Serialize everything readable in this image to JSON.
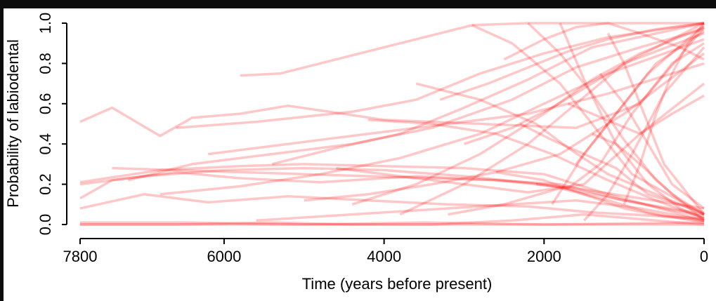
{
  "chart_data": {
    "type": "line",
    "title": "",
    "xlabel": "Time (years before present)",
    "ylabel": "Probability of labiodental",
    "xlim": [
      7800,
      0
    ],
    "ylim": [
      0,
      1
    ],
    "x_ticks": [
      "7800",
      "6000",
      "4000",
      "2000",
      "0"
    ],
    "y_ticks": [
      "0.0",
      "0.2",
      "0.4",
      "0.6",
      "0.8",
      "1.0"
    ],
    "line_color": "#ff0000",
    "grid": false,
    "legend": "none",
    "series": [
      {
        "x": [
          7800,
          7400,
          6800,
          6400,
          5800,
          5200,
          4000,
          2800,
          1600,
          800,
          0
        ],
        "y": [
          0.51,
          0.58,
          0.44,
          0.53,
          0.55,
          0.59,
          0.52,
          0.5,
          0.48,
          0.6,
          0.98
        ]
      },
      {
        "x": [
          7800,
          6800,
          5800,
          5000,
          4000,
          3000,
          2000,
          1200,
          0
        ],
        "y": [
          0.21,
          0.27,
          0.29,
          0.3,
          0.29,
          0.28,
          0.25,
          0.15,
          0.02
        ]
      },
      {
        "x": [
          7800,
          7000,
          6000,
          5000,
          4000,
          3000,
          2000,
          1000,
          0
        ],
        "y": [
          0.2,
          0.24,
          0.27,
          0.28,
          0.27,
          0.24,
          0.2,
          0.12,
          0.05
        ]
      },
      {
        "x": [
          7800,
          7400,
          6600,
          5800,
          4800,
          3600,
          2600,
          1600,
          0
        ],
        "y": [
          0.13,
          0.22,
          0.26,
          0.23,
          0.21,
          0.24,
          0.22,
          0.18,
          0.08
        ]
      },
      {
        "x": [
          7800,
          7000,
          6200,
          5200,
          4200,
          3200,
          2200,
          1400,
          0
        ],
        "y": [
          0.08,
          0.15,
          0.11,
          0.14,
          0.12,
          0.1,
          0.09,
          0.06,
          0.03
        ]
      },
      {
        "x": [
          7800,
          6000,
          4000,
          2000,
          1000,
          0
        ],
        "y": [
          0.0,
          0.0,
          0.0,
          0.0,
          0.0,
          0.0
        ]
      },
      {
        "x": [
          7800,
          6500,
          5000,
          3500,
          2000,
          0
        ],
        "y": [
          0.01,
          0.01,
          0.0,
          0.01,
          0.0,
          0.01
        ]
      },
      {
        "x": [
          7800,
          6600,
          5400,
          4400,
          3400,
          2400,
          1500,
          0
        ],
        "y": [
          0.0,
          0.0,
          0.01,
          0.0,
          0.0,
          0.02,
          0.05,
          0.0
        ]
      },
      {
        "x": [
          5800,
          5300,
          4200,
          2900,
          2200,
          1500,
          0
        ],
        "y": [
          0.74,
          0.75,
          0.86,
          0.99,
          1.0,
          1.0,
          1.0
        ]
      },
      {
        "x": [
          6600,
          5600,
          4400,
          3600,
          2800,
          2000,
          1200,
          0
        ],
        "y": [
          0.48,
          0.51,
          0.56,
          0.62,
          0.75,
          0.85,
          0.93,
          1.0
        ]
      },
      {
        "x": [
          7200,
          6400,
          5400,
          4400,
          3400,
          2400,
          1600,
          800,
          0
        ],
        "y": [
          0.22,
          0.3,
          0.35,
          0.4,
          0.48,
          0.62,
          0.78,
          0.88,
          0.97
        ]
      },
      {
        "x": [
          6800,
          5800,
          4800,
          3800,
          2800,
          2000,
          1200,
          0
        ],
        "y": [
          0.15,
          0.19,
          0.25,
          0.33,
          0.45,
          0.6,
          0.75,
          0.92
        ]
      },
      {
        "x": [
          5400,
          4600,
          3800,
          3000,
          2200,
          1400,
          0
        ],
        "y": [
          0.3,
          0.38,
          0.45,
          0.58,
          0.72,
          0.88,
          1.0
        ]
      },
      {
        "x": [
          4400,
          3600,
          2800,
          2000,
          1400,
          800,
          0
        ],
        "y": [
          0.1,
          0.2,
          0.35,
          0.55,
          0.72,
          0.85,
          0.98
        ]
      },
      {
        "x": [
          3800,
          3000,
          2200,
          1600,
          1000,
          0
        ],
        "y": [
          0.05,
          0.2,
          0.4,
          0.6,
          0.8,
          0.95
        ]
      },
      {
        "x": [
          3600,
          2800,
          2100,
          1700,
          1200,
          0
        ],
        "y": [
          0.7,
          0.62,
          0.5,
          0.38,
          0.25,
          0.05
        ]
      },
      {
        "x": [
          4200,
          3400,
          2600,
          1900,
          1200,
          600,
          0
        ],
        "y": [
          0.52,
          0.5,
          0.45,
          0.35,
          0.22,
          0.12,
          0.03
        ]
      },
      {
        "x": [
          2900,
          2400,
          1800,
          1300,
          900,
          0
        ],
        "y": [
          0.99,
          0.9,
          0.7,
          0.45,
          0.25,
          0.05
        ]
      },
      {
        "x": [
          2200,
          1800,
          1400,
          1000,
          600,
          0
        ],
        "y": [
          1.0,
          0.85,
          0.65,
          0.42,
          0.22,
          0.02
        ]
      },
      {
        "x": [
          1800,
          1500,
          1100,
          700,
          300,
          0
        ],
        "y": [
          1.0,
          0.72,
          0.4,
          0.2,
          0.08,
          0.03
        ]
      },
      {
        "x": [
          1600,
          1300,
          1000,
          600,
          0
        ],
        "y": [
          0.3,
          0.45,
          0.6,
          0.8,
          0.96
        ]
      },
      {
        "x": [
          1900,
          1500,
          1100,
          700,
          0
        ],
        "y": [
          0.1,
          0.35,
          0.55,
          0.75,
          0.99
        ]
      },
      {
        "x": [
          2100,
          1700,
          1300,
          900,
          400,
          0
        ],
        "y": [
          0.2,
          0.18,
          0.3,
          0.55,
          0.8,
          0.9
        ]
      },
      {
        "x": [
          1400,
          1100,
          800,
          400,
          0
        ],
        "y": [
          0.45,
          0.4,
          0.3,
          0.15,
          0.05
        ]
      },
      {
        "x": [
          1700,
          1400,
          1100,
          800,
          400,
          0
        ],
        "y": [
          0.6,
          0.55,
          0.5,
          0.45,
          0.55,
          0.64
        ]
      },
      {
        "x": [
          2600,
          2000,
          1500,
          1000,
          500,
          0
        ],
        "y": [
          0.26,
          0.22,
          0.15,
          0.08,
          0.04,
          0.02
        ]
      },
      {
        "x": [
          3200,
          2500,
          1800,
          1200,
          700,
          0
        ],
        "y": [
          0.05,
          0.1,
          0.18,
          0.12,
          0.06,
          0.01
        ]
      },
      {
        "x": [
          1500,
          1200,
          900,
          500,
          0
        ],
        "y": [
          0.02,
          0.15,
          0.35,
          0.65,
          0.88
        ]
      },
      {
        "x": [
          1200,
          1000,
          800,
          500,
          0
        ],
        "y": [
          0.95,
          0.8,
          0.6,
          0.3,
          0.05
        ]
      },
      {
        "x": [
          5000,
          4200,
          3400,
          2600,
          1800,
          1000,
          0
        ],
        "y": [
          0.12,
          0.15,
          0.2,
          0.26,
          0.35,
          0.55,
          0.85
        ]
      },
      {
        "x": [
          6200,
          5200,
          4200,
          3200,
          2200,
          1200,
          0
        ],
        "y": [
          0.35,
          0.4,
          0.45,
          0.5,
          0.55,
          0.65,
          0.8
        ]
      },
      {
        "x": [
          3000,
          2400,
          1900,
          1400,
          900,
          400,
          0
        ],
        "y": [
          0.4,
          0.48,
          0.58,
          0.7,
          0.82,
          0.92,
          1.0
        ]
      },
      {
        "x": [
          2500,
          2000,
          1600,
          1200,
          800,
          300,
          0
        ],
        "y": [
          0.82,
          0.92,
          0.98,
          1.0,
          0.95,
          0.88,
          0.82
        ]
      },
      {
        "x": [
          4600,
          3800,
          3000,
          2200,
          1500,
          800,
          0
        ],
        "y": [
          0.28,
          0.24,
          0.2,
          0.16,
          0.2,
          0.45,
          0.7
        ]
      },
      {
        "x": [
          1000,
          800,
          600,
          400,
          200,
          0
        ],
        "y": [
          0.1,
          0.3,
          0.55,
          0.75,
          0.9,
          1.0
        ]
      },
      {
        "x": [
          1300,
          1000,
          700,
          400,
          0
        ],
        "y": [
          0.75,
          0.6,
          0.4,
          0.2,
          0.08
        ]
      },
      {
        "x": [
          2300,
          1900,
          1500,
          1100,
          700,
          0
        ],
        "y": [
          0.5,
          0.42,
          0.35,
          0.28,
          0.15,
          0.06
        ]
      },
      {
        "x": [
          3300,
          2700,
          2200,
          1700,
          1200,
          600,
          0
        ],
        "y": [
          0.62,
          0.7,
          0.78,
          0.86,
          0.92,
          0.97,
          1.0
        ]
      },
      {
        "x": [
          5600,
          4800,
          4000,
          3200,
          2400,
          1600,
          800,
          0
        ],
        "y": [
          0.02,
          0.04,
          0.06,
          0.08,
          0.1,
          0.12,
          0.08,
          0.02
        ]
      },
      {
        "x": [
          7400,
          6600,
          5800,
          5000,
          4200,
          3400,
          2600,
          1800,
          1000,
          0
        ],
        "y": [
          0.28,
          0.27,
          0.26,
          0.25,
          0.24,
          0.23,
          0.22,
          0.2,
          0.12,
          0.04
        ]
      }
    ]
  }
}
